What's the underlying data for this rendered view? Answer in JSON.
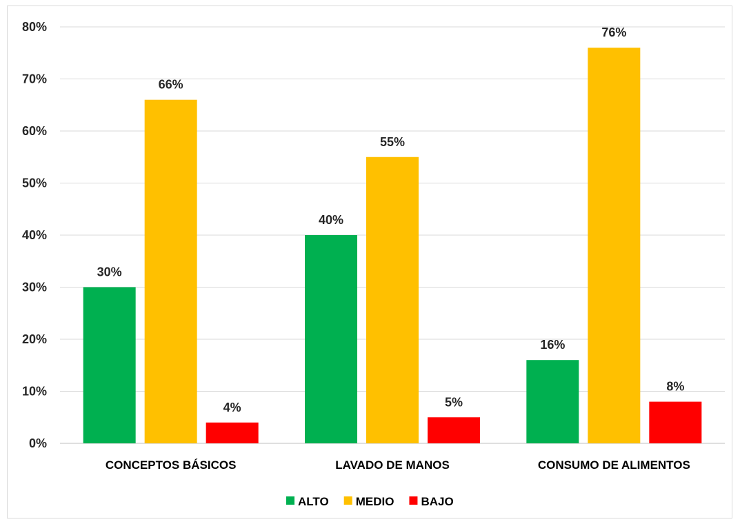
{
  "chart_data": {
    "type": "bar",
    "categories": [
      "CONCEPTOS BÁSICOS",
      "LAVADO DE MANOS",
      "CONSUMO DE ALIMENTOS"
    ],
    "series": [
      {
        "name": "ALTO",
        "color": "#00b050",
        "values": [
          30,
          40,
          16
        ]
      },
      {
        "name": "MEDIO",
        "color": "#ffc000",
        "values": [
          66,
          55,
          76
        ]
      },
      {
        "name": "BAJO",
        "color": "#ff0000",
        "values": [
          4,
          5,
          8
        ]
      }
    ],
    "value_suffix": "%",
    "ylim": [
      0,
      80
    ],
    "yticks": [
      0,
      10,
      20,
      30,
      40,
      50,
      60,
      70,
      80
    ],
    "grid": true,
    "legend": "bottom-center"
  }
}
